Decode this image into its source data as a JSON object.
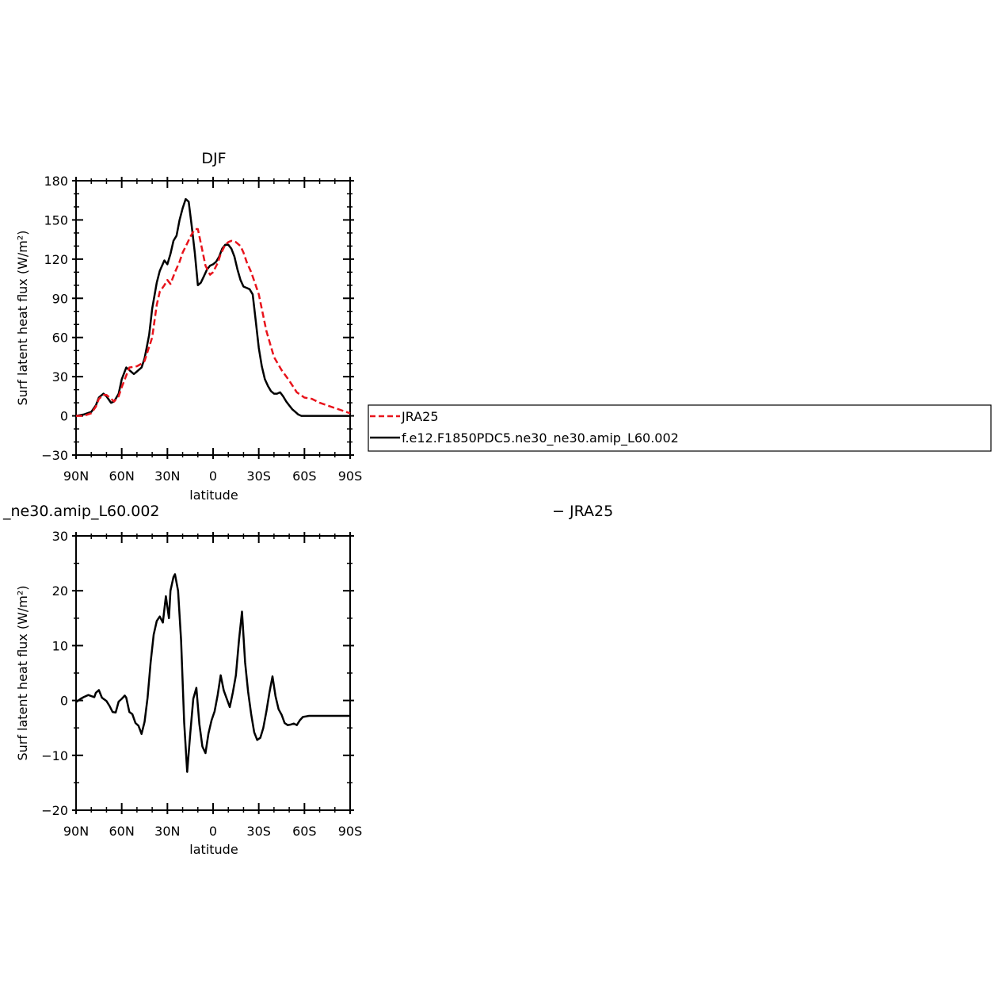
{
  "chart_data": [
    {
      "type": "line",
      "title": "DJF",
      "xlabel": "latitude",
      "ylabel": "Surf latent heat flux (W/m²)",
      "ylim": [
        -30,
        180
      ],
      "yticks": [
        "180",
        "150",
        "120",
        "90",
        "60",
        "30",
        "0",
        "−30"
      ],
      "ytick_values": [
        180,
        150,
        120,
        90,
        60,
        30,
        0,
        -30
      ],
      "xlim": [
        -90,
        90
      ],
      "xticks": [
        "90N",
        "60N",
        "30N",
        "0",
        "30S",
        "60S",
        "90S"
      ],
      "xtick_values": [
        -90,
        -60,
        -30,
        0,
        30,
        60,
        90
      ],
      "x_orientation": "North on left (positive N, values shown as 90N..90S)",
      "legend": {
        "placement": "right of plot",
        "entries": [
          {
            "label": "JRA25",
            "color": "#e8141c",
            "dash": true
          },
          {
            "label": "f.e12.F1850PDC5.ne30_ne30.amip_L60.002",
            "color": "#000000",
            "dash": false
          }
        ]
      },
      "series": [
        {
          "name": "JRA25",
          "color": "#e8141c",
          "dash": true,
          "x": [
            -90,
            -85,
            -80,
            -77,
            -75,
            -72,
            -70,
            -65,
            -62,
            -60,
            -55,
            -50,
            -47,
            -45,
            -40,
            -37,
            -35,
            -32,
            -30,
            -28,
            -25,
            -22,
            -20,
            -17,
            -15,
            -12,
            -10,
            -8,
            -5,
            -2,
            0,
            3,
            5,
            8,
            10,
            12,
            15,
            18,
            20,
            22,
            25,
            28,
            30,
            35,
            40,
            45,
            50,
            55,
            60,
            65,
            70,
            75,
            80,
            85,
            90
          ],
          "values": [
            0,
            0,
            2,
            7,
            13,
            16,
            16,
            11,
            15,
            22,
            37,
            38,
            40,
            42,
            60,
            85,
            95,
            100,
            104,
            101,
            110,
            118,
            125,
            132,
            137,
            143,
            143,
            132,
            115,
            108,
            110,
            117,
            124,
            131,
            133,
            134,
            133,
            130,
            125,
            118,
            110,
            100,
            93,
            65,
            45,
            35,
            27,
            18,
            14,
            13,
            10,
            8,
            6,
            4,
            2
          ]
        },
        {
          "name": "f.e12.F1850PDC5.ne30_ne30.amip_L60.002",
          "color": "#000000",
          "dash": false,
          "x": [
            -90,
            -85,
            -80,
            -77,
            -75,
            -72,
            -70,
            -67,
            -65,
            -62,
            -60,
            -57,
            -55,
            -52,
            -50,
            -47,
            -45,
            -42,
            -40,
            -37,
            -35,
            -32,
            -30,
            -28,
            -26,
            -24,
            -22,
            -20,
            -18,
            -16,
            -14,
            -12,
            -10,
            -8,
            -6,
            -4,
            -2,
            0,
            2,
            4,
            6,
            8,
            10,
            12,
            14,
            16,
            18,
            20,
            22,
            24,
            26,
            28,
            30,
            32,
            34,
            36,
            38,
            40,
            42,
            44,
            46,
            48,
            50,
            52,
            54,
            56,
            58,
            60,
            62,
            64,
            66,
            68,
            70,
            72,
            74,
            76,
            78,
            80,
            82,
            84,
            86,
            88,
            90
          ],
          "values": [
            0,
            1,
            3,
            8,
            14,
            17,
            15,
            10,
            11,
            17,
            28,
            37,
            35,
            32,
            34,
            37,
            44,
            62,
            82,
            102,
            111,
            119,
            116,
            124,
            134,
            138,
            150,
            159,
            166,
            164,
            145,
            125,
            100,
            102,
            107,
            112,
            115,
            116,
            118,
            122,
            128,
            131,
            131,
            128,
            122,
            112,
            104,
            99,
            98,
            97,
            93,
            73,
            52,
            38,
            28,
            23,
            19,
            17,
            17,
            18,
            15,
            11,
            8,
            5,
            3,
            1,
            0,
            0,
            0,
            0,
            0,
            0,
            0,
            0,
            0,
            0,
            0,
            0,
            0,
            0,
            0,
            0,
            0
          ],
          "x_note": "latitude, negative = north, positive = south"
        }
      ]
    },
    {
      "type": "line",
      "title": "_ne30.amip_L60.002",
      "title_right": "− JRA25",
      "xlabel": "latitude",
      "ylabel": "Surf latent heat flux (W/m²)",
      "ylim": [
        -20,
        30
      ],
      "yticks": [
        "30",
        "20",
        "10",
        "0",
        "−10",
        "−20"
      ],
      "ytick_values": [
        30,
        20,
        10,
        0,
        -10,
        -20
      ],
      "xlim": [
        -90,
        90
      ],
      "xticks": [
        "90N",
        "60N",
        "30N",
        "0",
        "30S",
        "60S",
        "90S"
      ],
      "xtick_values": [
        -90,
        -60,
        -30,
        0,
        30,
        60,
        90
      ],
      "series": [
        {
          "color": "#000000",
          "dash": false,
          "x": [
            -90,
            -87,
            -85,
            -82,
            -80,
            -78,
            -77,
            -75,
            -73,
            -70,
            -68,
            -66,
            -64,
            -62,
            -60,
            -58,
            -57,
            -55,
            -53,
            -51,
            -49,
            -47,
            -45,
            -43,
            -41,
            -39,
            -37,
            -35,
            -33,
            -31,
            -29,
            -28,
            -26,
            -25,
            -23,
            -21,
            -19,
            -17,
            -15,
            -13,
            -11,
            -9,
            -7,
            -5,
            -3,
            -1,
            1,
            3,
            5,
            7,
            9,
            11,
            13,
            15,
            17,
            19,
            21,
            23,
            25,
            27,
            29,
            31,
            33,
            35,
            37,
            39,
            41,
            43,
            45,
            47,
            49,
            51,
            53,
            55,
            57,
            59,
            61,
            63,
            65,
            67,
            69,
            71,
            73,
            75,
            77,
            79,
            81,
            83,
            85,
            87,
            89,
            90
          ],
          "values": [
            -0.3,
            0.3,
            0.6,
            1.0,
            0.8,
            0.6,
            1.4,
            1.9,
            0.5,
            -0.1,
            -1.0,
            -2.1,
            -2.2,
            -0.2,
            0.3,
            0.9,
            0.5,
            -2.1,
            -2.5,
            -4.1,
            -4.6,
            -6.1,
            -3.9,
            0.5,
            7.0,
            12.0,
            14.5,
            15.3,
            14.2,
            19.0,
            15.0,
            20.0,
            22.5,
            23.0,
            20.0,
            11.0,
            -4.0,
            -13.0,
            -6.0,
            0.3,
            2.3,
            -4.3,
            -8.4,
            -9.6,
            -6.0,
            -3.6,
            -2.0,
            1.0,
            4.6,
            1.8,
            0.3,
            -1.2,
            1.5,
            4.6,
            11.0,
            16.2,
            7.0,
            1.6,
            -2.5,
            -5.8,
            -7.2,
            -6.8,
            -5.0,
            -2.0,
            1.4,
            4.4,
            0.8,
            -1.6,
            -2.6,
            -4.1,
            -4.5,
            -4.4,
            -4.2,
            -4.5,
            -3.6,
            -3.0,
            -2.9,
            -2.8,
            -2.8,
            -2.8,
            -2.8,
            -2.8,
            -2.8,
            -2.8,
            -2.8,
            -2.8,
            -2.8,
            -2.8,
            -2.8,
            -2.8,
            -2.8,
            -2.8
          ]
        }
      ]
    }
  ]
}
